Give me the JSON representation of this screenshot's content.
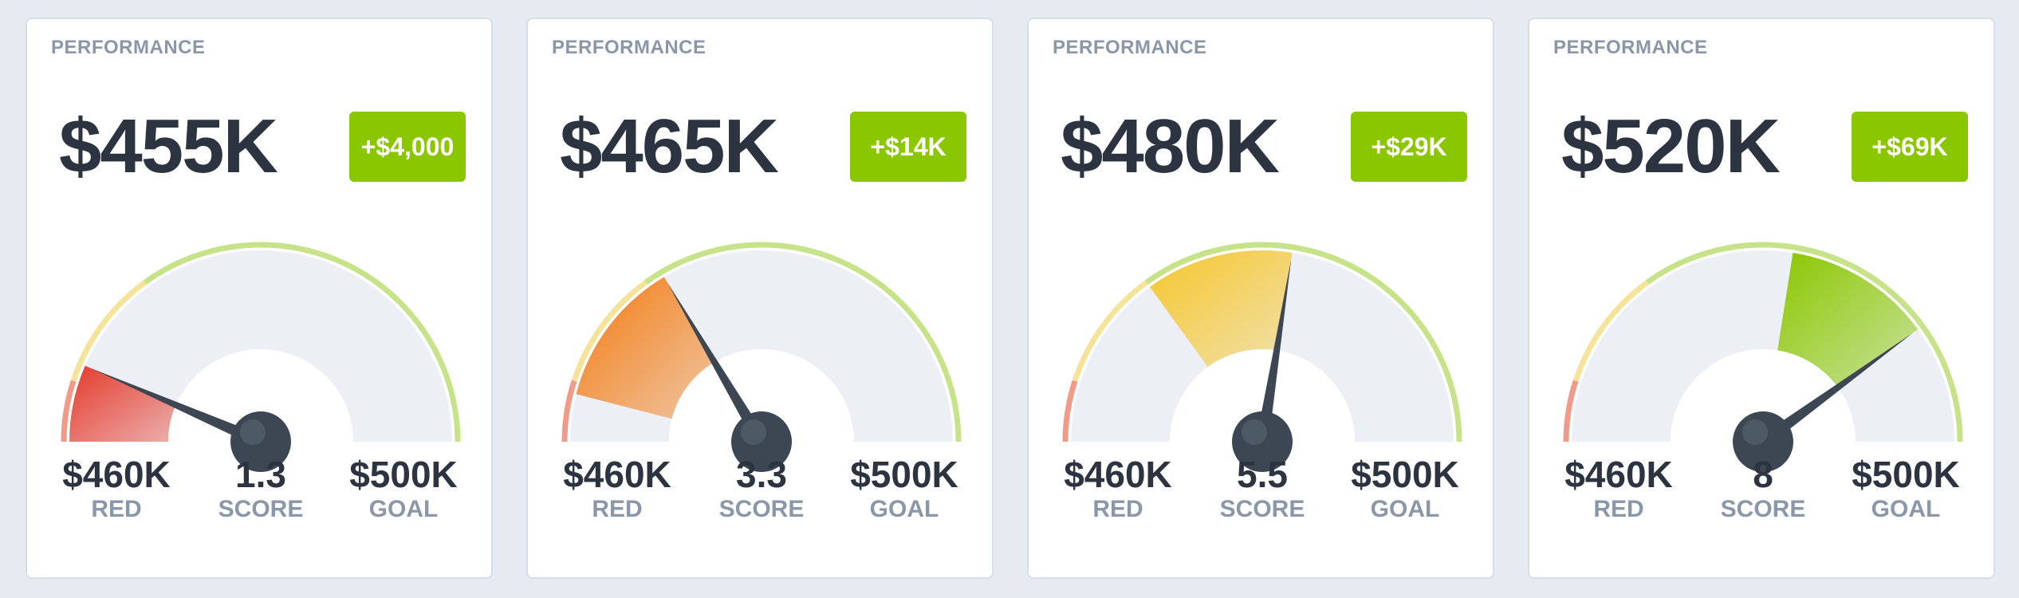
{
  "colors": {
    "background": "#e6ebf2",
    "card": "#ffffff",
    "text_dark": "#2b3440",
    "text_muted": "#8a97a8",
    "badge": "#8ac700",
    "zone_red": "#f29a8a",
    "zone_yellow": "#f6e39a",
    "zone_green": "#c7e38a"
  },
  "cards": [
    {
      "label": "PERFORMANCE",
      "value": "$455K",
      "delta": "+$4,000",
      "score": 1.3,
      "score_text": "1.3",
      "score_fill": "#e53a2b",
      "left_value": "$460K",
      "left_label": "RED",
      "mid_label": "SCORE",
      "right_value": "$500K",
      "right_label": "GOAL"
    },
    {
      "label": "PERFORMANCE",
      "value": "$465K",
      "delta": "+$14K",
      "score": 3.3,
      "score_text": "3.3",
      "score_fill": "#f37a10",
      "left_value": "$460K",
      "left_label": "RED",
      "mid_label": "SCORE",
      "right_value": "$500K",
      "right_label": "GOAL"
    },
    {
      "label": "PERFORMANCE",
      "value": "$480K",
      "delta": "+$29K",
      "score": 5.5,
      "score_text": "5.5",
      "score_fill": "#f6c62b",
      "left_value": "$460K",
      "left_label": "RED",
      "mid_label": "SCORE",
      "right_value": "$500K",
      "right_label": "GOAL"
    },
    {
      "label": "PERFORMANCE",
      "value": "$520K",
      "delta": "+$69K",
      "score": 8,
      "score_text": "8",
      "score_fill": "#8ac700",
      "left_value": "$460K",
      "left_label": "RED",
      "mid_label": "SCORE",
      "right_value": "$500K",
      "right_label": "GOAL"
    }
  ]
}
